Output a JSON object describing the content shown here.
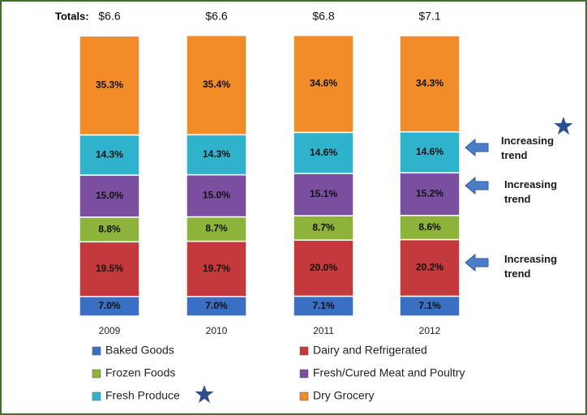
{
  "chart_data": {
    "type": "bar",
    "stacked": true,
    "categories": [
      "2009",
      "2010",
      "2011",
      "2012"
    ],
    "ylim": [
      0,
      100
    ],
    "totals": {
      "label": "Totals:",
      "values": [
        6.6,
        6.6,
        6.8,
        7.1
      ],
      "value_labels": [
        "$6.6",
        "$6.6",
        "$6.8",
        "$7.1"
      ]
    },
    "series": [
      {
        "name": "Baked Goods",
        "color": "#3a6fc4",
        "values": [
          7.0,
          7.0,
          7.1,
          7.1
        ],
        "value_labels": [
          "7.0%",
          "7.0%",
          "7.1%",
          "7.1%"
        ]
      },
      {
        "name": "Dairy and Refrigerated",
        "color": "#c4393b",
        "values": [
          19.5,
          19.7,
          20.0,
          20.2
        ],
        "value_labels": [
          "19.5%",
          "19.7%",
          "20.0%",
          "20.2%"
        ]
      },
      {
        "name": "Frozen Foods",
        "color": "#8db33a",
        "values": [
          8.8,
          8.7,
          8.7,
          8.6
        ],
        "value_labels": [
          "8.8%",
          "8.7%",
          "8.7%",
          "8.6%"
        ]
      },
      {
        "name": "Fresh/Cured Meat and Poultry",
        "color": "#7a4fa0",
        "values": [
          15.0,
          15.0,
          15.1,
          15.2
        ],
        "value_labels": [
          "15.0%",
          "15.0%",
          "15.1%",
          "15.2%"
        ]
      },
      {
        "name": "Fresh Produce",
        "color": "#2fb3cc",
        "values": [
          14.3,
          14.3,
          14.6,
          14.6
        ],
        "value_labels": [
          "14.3%",
          "14.3%",
          "14.6%",
          "14.6%"
        ]
      },
      {
        "name": "Dry Grocery",
        "color": "#f28c28",
        "values": [
          35.3,
          35.4,
          34.6,
          34.3
        ],
        "value_labels": [
          "35.3%",
          "35.4%",
          "34.6%",
          "34.3%"
        ]
      }
    ],
    "annotations": [
      "Increasing trend",
      "Increasing trend",
      "Increasing trend"
    ]
  }
}
